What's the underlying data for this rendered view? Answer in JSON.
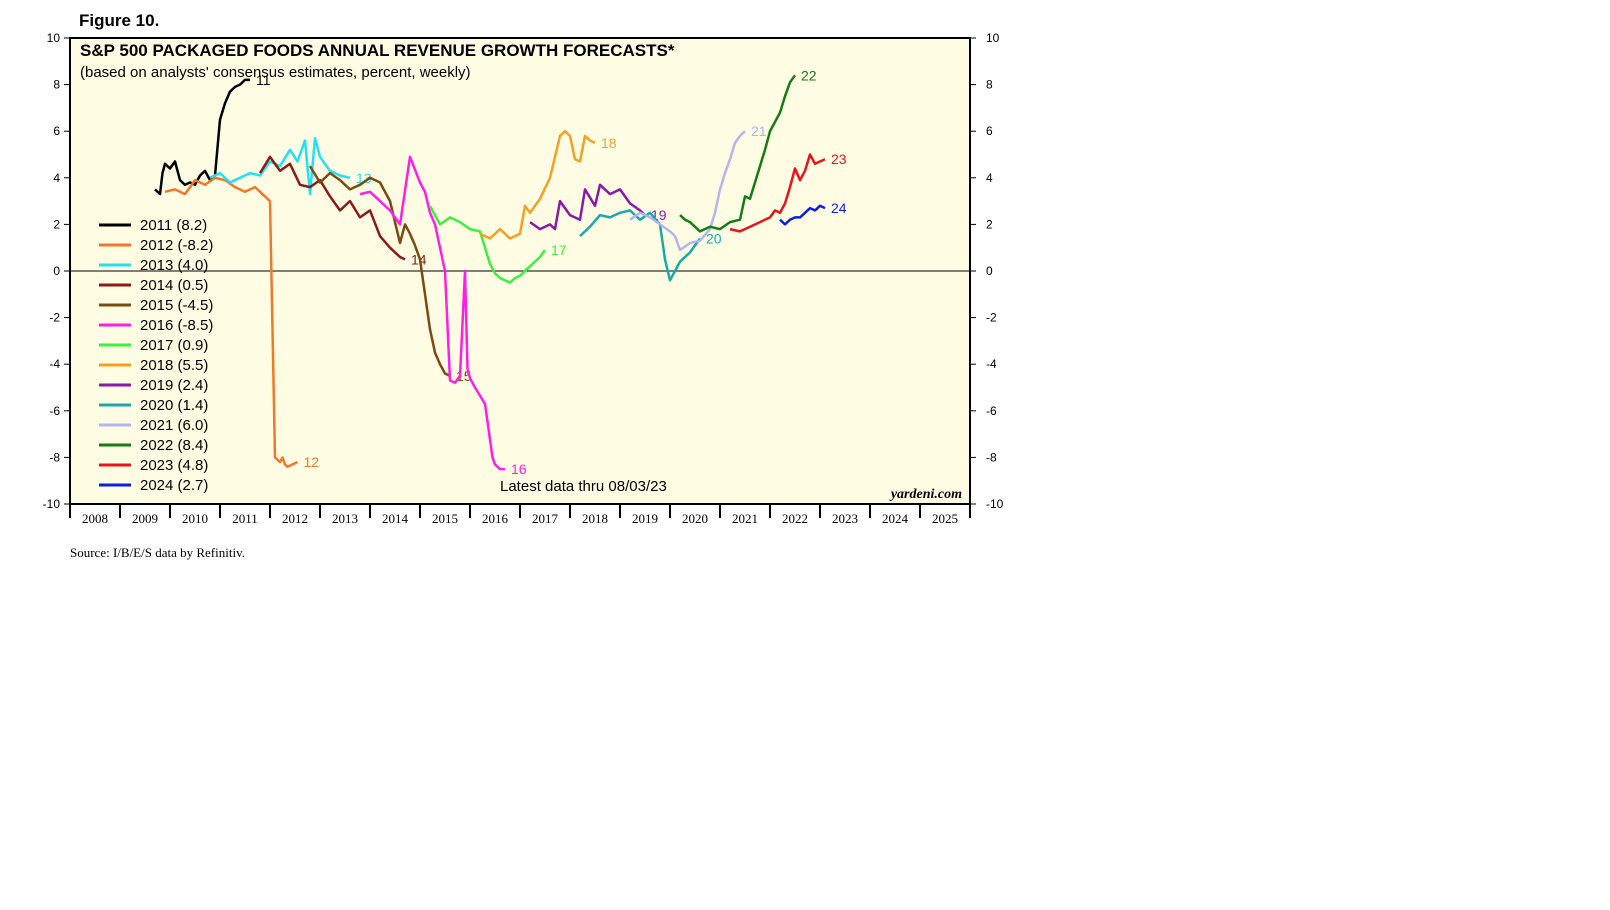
{
  "figure_label": "Figure 10.",
  "source": "Source: I/B/E/S data by Refinitiv.",
  "brand": "yardeni.com",
  "note": "Latest data thru 08/03/23",
  "colors": {
    "background": "#fefde4",
    "frame": "#000000",
    "zero_line": "#000000"
  },
  "chart_data": {
    "type": "line",
    "title": "S&P 500 PACKAGED FOODS ANNUAL REVENUE GROWTH FORECASTS*",
    "subtitle": "(based on analysts' consensus estimates, percent, weekly)",
    "xlabel": "",
    "ylabel": "",
    "xlim": [
      2008,
      2026
    ],
    "ylim": [
      -10,
      10
    ],
    "y_ticks": [
      -10,
      -8,
      -6,
      -4,
      -2,
      0,
      2,
      4,
      6,
      8,
      10
    ],
    "x_tick_labels": [
      "2008",
      "2009",
      "2010",
      "2011",
      "2012",
      "2013",
      "2014",
      "2015",
      "2016",
      "2017",
      "2018",
      "2019",
      "2020",
      "2021",
      "2022",
      "2023",
      "2024",
      "2025"
    ],
    "legend_position": "left",
    "series": [
      {
        "name": "2011",
        "legend": "2011 (8.2)",
        "end_label": "11",
        "color": "#000000",
        "x": [
          2009.7,
          2009.8,
          2009.85,
          2009.9,
          2010.0,
          2010.1,
          2010.2,
          2010.3,
          2010.4,
          2010.5,
          2010.6,
          2010.7,
          2010.8,
          2010.9,
          2011.0,
          2011.1,
          2011.2,
          2011.3,
          2011.4,
          2011.5,
          2011.6
        ],
        "values": [
          3.5,
          3.3,
          4.2,
          4.6,
          4.4,
          4.7,
          3.9,
          3.7,
          3.8,
          3.7,
          4.1,
          4.3,
          3.9,
          4.1,
          6.5,
          7.2,
          7.7,
          7.9,
          8.0,
          8.2,
          8.2
        ]
      },
      {
        "name": "2012",
        "legend": "2012 (-8.2)",
        "end_label": "12",
        "color": "#f0782a",
        "x": [
          2009.9,
          2010.1,
          2010.3,
          2010.5,
          2010.7,
          2010.9,
          2011.1,
          2011.3,
          2011.5,
          2011.7,
          2011.9,
          2012.0,
          2012.1,
          2012.2,
          2012.25,
          2012.3,
          2012.35,
          2012.45,
          2012.55
        ],
        "values": [
          3.4,
          3.5,
          3.3,
          3.9,
          3.7,
          4.0,
          3.9,
          3.6,
          3.4,
          3.6,
          3.2,
          3.0,
          -8.0,
          -8.2,
          -8.0,
          -8.3,
          -8.4,
          -8.3,
          -8.2
        ]
      },
      {
        "name": "2013",
        "legend": "2013 (4.0)",
        "end_label": "13",
        "color": "#22e0f0",
        "x": [
          2010.8,
          2011.0,
          2011.2,
          2011.4,
          2011.6,
          2011.8,
          2012.0,
          2012.2,
          2012.4,
          2012.55,
          2012.7,
          2012.8,
          2012.9,
          2013.0,
          2013.2,
          2013.4,
          2013.6
        ],
        "values": [
          4.0,
          4.2,
          3.8,
          4.0,
          4.2,
          4.1,
          4.7,
          4.5,
          5.2,
          4.7,
          5.6,
          3.3,
          5.7,
          4.9,
          4.3,
          4.1,
          4.0
        ]
      },
      {
        "name": "2014",
        "legend": "2014 (0.5)",
        "end_label": "14",
        "color": "#8b1a1a",
        "x": [
          2011.8,
          2012.0,
          2012.2,
          2012.4,
          2012.6,
          2012.8,
          2013.0,
          2013.2,
          2013.4,
          2013.6,
          2013.8,
          2014.0,
          2014.2,
          2014.4,
          2014.6,
          2014.7
        ],
        "values": [
          4.2,
          4.9,
          4.3,
          4.6,
          3.7,
          3.6,
          3.9,
          3.2,
          2.6,
          3.0,
          2.3,
          2.6,
          1.5,
          1.0,
          0.6,
          0.5
        ]
      },
      {
        "name": "2015",
        "legend": "2015 (-4.5)",
        "end_label": "15",
        "color": "#7b4a12",
        "x": [
          2012.8,
          2013.0,
          2013.2,
          2013.4,
          2013.6,
          2013.8,
          2014.0,
          2014.2,
          2014.4,
          2014.6,
          2014.7,
          2014.8,
          2014.9,
          2015.0,
          2015.1,
          2015.2,
          2015.3,
          2015.4,
          2015.5,
          2015.6
        ],
        "values": [
          4.5,
          3.8,
          4.2,
          3.9,
          3.5,
          3.7,
          4.0,
          3.8,
          3.0,
          1.2,
          2.0,
          1.6,
          1.1,
          0.5,
          -1.0,
          -2.5,
          -3.5,
          -4.0,
          -4.4,
          -4.5
        ]
      },
      {
        "name": "2016",
        "legend": "2016 (-8.5)",
        "end_label": "16",
        "color": "#ff1ee6",
        "x": [
          2013.8,
          2014.0,
          2014.2,
          2014.4,
          2014.6,
          2014.8,
          2015.0,
          2015.1,
          2015.2,
          2015.3,
          2015.5,
          2015.6,
          2015.7,
          2015.8,
          2015.9,
          2015.95,
          2016.0,
          2016.1,
          2016.3,
          2016.45,
          2016.5,
          2016.6,
          2016.7
        ],
        "values": [
          3.3,
          3.4,
          3.0,
          2.6,
          2.0,
          4.9,
          3.8,
          3.4,
          2.5,
          2.0,
          0.0,
          -4.7,
          -4.8,
          -4.5,
          0.0,
          -4.2,
          -4.6,
          -5.0,
          -5.7,
          -8.0,
          -8.3,
          -8.5,
          -8.5
        ]
      },
      {
        "name": "2017",
        "legend": "2017 (0.9)",
        "end_label": "17",
        "color": "#3ef03e",
        "x": [
          2015.2,
          2015.4,
          2015.6,
          2015.8,
          2016.0,
          2016.2,
          2016.4,
          2016.5,
          2016.6,
          2016.8,
          2016.9,
          2017.0,
          2017.2,
          2017.4,
          2017.5
        ],
        "values": [
          2.8,
          2.0,
          2.3,
          2.1,
          1.8,
          1.7,
          0.3,
          -0.1,
          -0.3,
          -0.5,
          -0.3,
          -0.2,
          0.2,
          0.6,
          0.9
        ]
      },
      {
        "name": "2018",
        "legend": "2018 (5.5)",
        "end_label": "18",
        "color": "#f5a025",
        "x": [
          2016.2,
          2016.4,
          2016.6,
          2016.8,
          2017.0,
          2017.1,
          2017.2,
          2017.4,
          2017.6,
          2017.8,
          2017.9,
          2018.0,
          2018.1,
          2018.2,
          2018.3,
          2018.4,
          2018.5
        ],
        "values": [
          1.6,
          1.4,
          1.8,
          1.4,
          1.6,
          2.8,
          2.5,
          3.1,
          4.0,
          5.8,
          6.0,
          5.8,
          4.8,
          4.7,
          5.8,
          5.6,
          5.5
        ]
      },
      {
        "name": "2019",
        "legend": "2019 (2.4)",
        "end_label": "19",
        "color": "#8b18a8",
        "x": [
          2017.2,
          2017.4,
          2017.6,
          2017.7,
          2017.8,
          2018.0,
          2018.2,
          2018.3,
          2018.5,
          2018.6,
          2018.8,
          2019.0,
          2019.2,
          2019.4,
          2019.5
        ],
        "values": [
          2.1,
          1.8,
          2.0,
          1.8,
          3.0,
          2.4,
          2.2,
          3.5,
          2.8,
          3.7,
          3.3,
          3.5,
          2.9,
          2.6,
          2.4
        ]
      },
      {
        "name": "2020",
        "legend": "2020 (1.4)",
        "end_label": "20",
        "color": "#1aa8a8",
        "x": [
          2018.2,
          2018.4,
          2018.6,
          2018.8,
          2019.0,
          2019.2,
          2019.4,
          2019.6,
          2019.8,
          2019.9,
          2020.0,
          2020.1,
          2020.2,
          2020.4,
          2020.6
        ],
        "values": [
          1.5,
          1.9,
          2.4,
          2.3,
          2.5,
          2.6,
          2.2,
          2.5,
          2.0,
          0.5,
          -0.4,
          0.0,
          0.4,
          0.8,
          1.4
        ]
      },
      {
        "name": "2021",
        "legend": "2021 (6.0)",
        "end_label": "21",
        "color": "#b4b4f0",
        "x": [
          2019.2,
          2019.4,
          2019.6,
          2019.8,
          2020.0,
          2020.1,
          2020.2,
          2020.4,
          2020.6,
          2020.8,
          2020.9,
          2021.0,
          2021.1,
          2021.2,
          2021.3,
          2021.4,
          2021.5
        ],
        "values": [
          2.2,
          2.5,
          2.3,
          2.0,
          1.7,
          1.5,
          0.9,
          1.2,
          1.3,
          1.8,
          2.5,
          3.5,
          4.2,
          4.8,
          5.5,
          5.8,
          6.0
        ]
      },
      {
        "name": "2022",
        "legend": "2022 (8.4)",
        "end_label": "22",
        "color": "#177a17",
        "x": [
          2020.2,
          2020.3,
          2020.4,
          2020.6,
          2020.8,
          2021.0,
          2021.2,
          2021.4,
          2021.5,
          2021.6,
          2021.8,
          2021.9,
          2022.0,
          2022.2,
          2022.3,
          2022.4,
          2022.5
        ],
        "values": [
          2.4,
          2.2,
          2.1,
          1.7,
          1.9,
          1.8,
          2.1,
          2.2,
          3.2,
          3.1,
          4.5,
          5.2,
          6.0,
          6.8,
          7.5,
          8.1,
          8.4
        ]
      },
      {
        "name": "2023",
        "legend": "2023 (4.8)",
        "end_label": "23",
        "color": "#e8141a",
        "x": [
          2021.2,
          2021.4,
          2021.6,
          2021.8,
          2022.0,
          2022.1,
          2022.2,
          2022.3,
          2022.4,
          2022.5,
          2022.6,
          2022.7,
          2022.8,
          2022.9,
          2023.0,
          2023.1
        ],
        "values": [
          1.8,
          1.7,
          1.9,
          2.1,
          2.3,
          2.6,
          2.5,
          2.9,
          3.6,
          4.4,
          3.9,
          4.3,
          5.0,
          4.6,
          4.7,
          4.8
        ]
      },
      {
        "name": "2024",
        "legend": "2024 (2.7)",
        "end_label": "24",
        "color": "#0a1ee6",
        "x": [
          2022.2,
          2022.3,
          2022.4,
          2022.5,
          2022.6,
          2022.7,
          2022.8,
          2022.9,
          2023.0,
          2023.1
        ],
        "values": [
          2.2,
          2.0,
          2.2,
          2.3,
          2.3,
          2.5,
          2.7,
          2.6,
          2.8,
          2.7
        ]
      }
    ]
  }
}
